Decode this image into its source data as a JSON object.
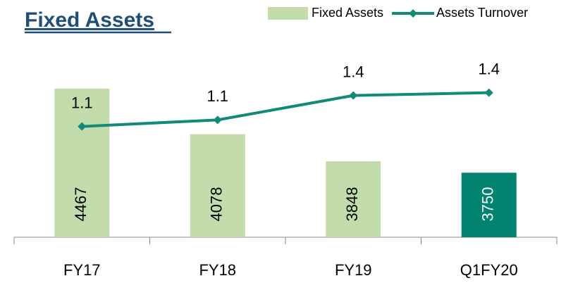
{
  "chart_data": {
    "type": "bar_line",
    "title": "Fixed Assets",
    "categories": [
      "FY17",
      "FY18",
      "FY19",
      "Q1FY20"
    ],
    "series": [
      {
        "name": "Fixed Assets",
        "type": "bar",
        "color": "#c3dcab",
        "colors": [
          "#c3dcab",
          "#c3dcab",
          "#c3dcab",
          "#00836f"
        ],
        "values": [
          4467,
          4078,
          3848,
          3750
        ]
      },
      {
        "name": "Assets Turnover",
        "type": "line",
        "axis": "y2",
        "color": "#128a78",
        "values": [
          1.05,
          1.12,
          1.38,
          1.41
        ],
        "value_labels": [
          "1.1",
          "1.1",
          "1.4",
          "1.4"
        ]
      }
    ],
    "ylim": [
      3200,
      5000
    ],
    "y2lim": [
      -0.13,
      2.12
    ],
    "grid": false,
    "legend": "top-right"
  }
}
